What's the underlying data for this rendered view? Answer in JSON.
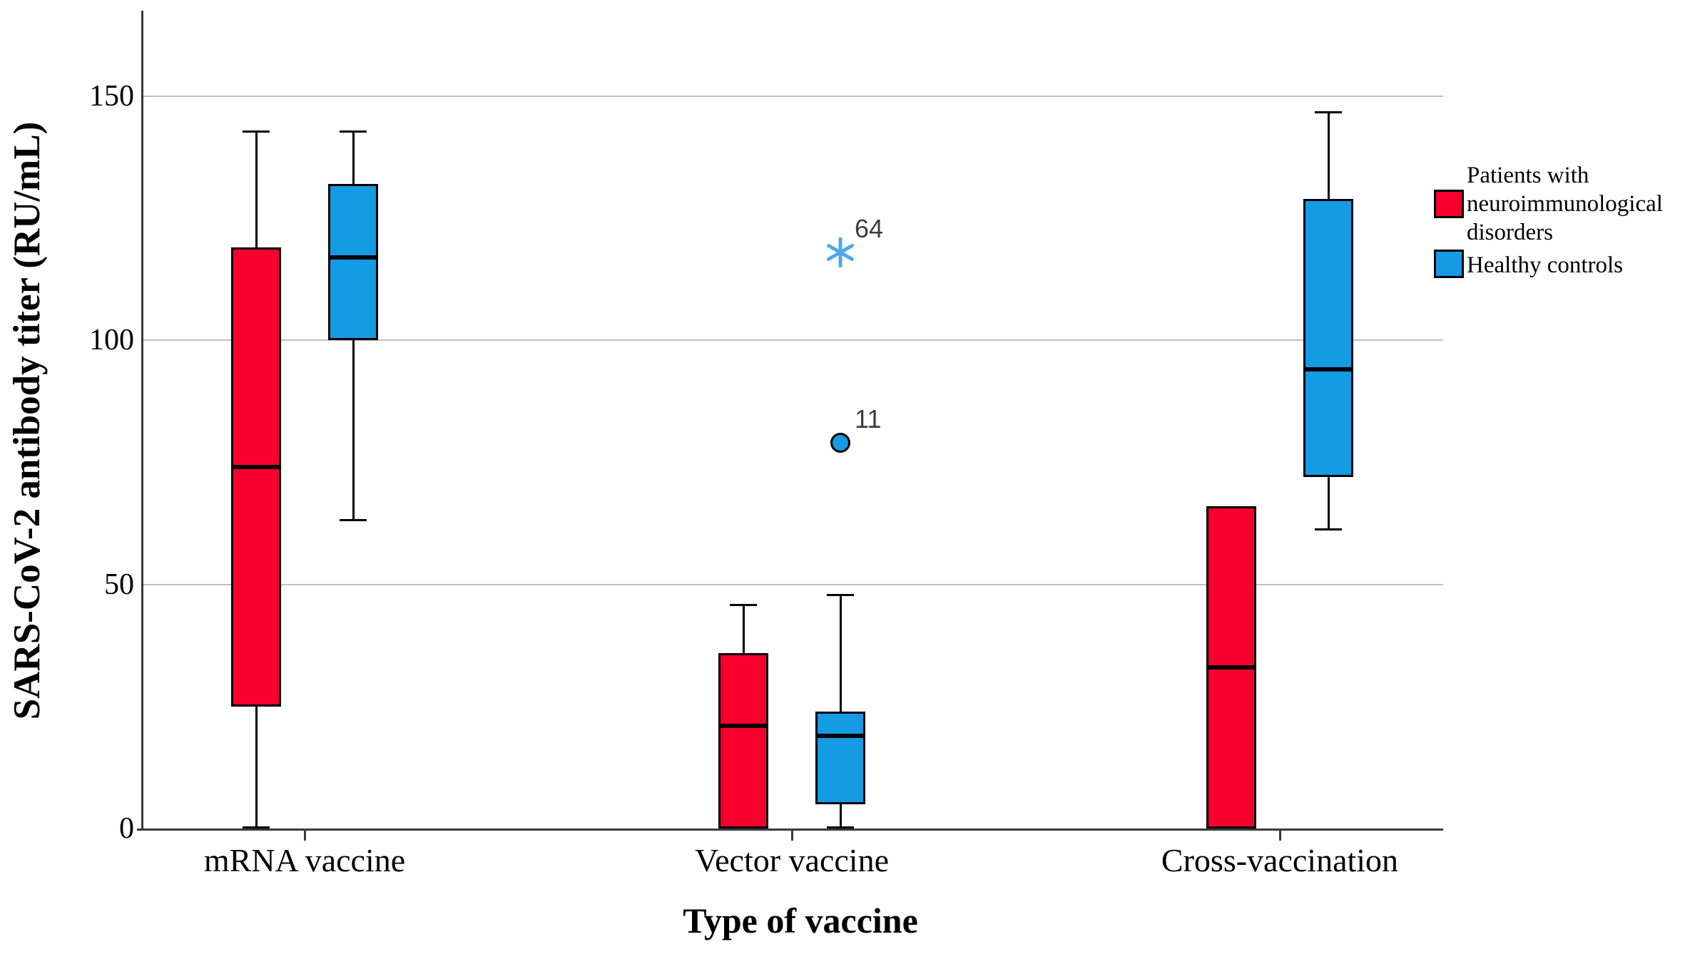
{
  "figure": {
    "background": "#ffffff"
  },
  "chart_data": {
    "type": "boxplot",
    "title": "",
    "xlabel": "Type of vaccine",
    "ylabel": "SARS-CoV-2 antibody titer (RU/mL)",
    "categories": [
      "mRNA vaccine",
      "Vector vaccine",
      "Cross-vaccination"
    ],
    "y_ticks": [
      0,
      50,
      100,
      150
    ],
    "ylim": [
      0,
      167
    ],
    "grid": "horizontal-gray-lines-at-50-100-150",
    "legend_position": "right",
    "series": [
      {
        "name": "Patients with neuroimmunological disorders",
        "color": "#f8002e",
        "boxes": [
          {
            "category": "mRNA vaccine",
            "whisker_low": 0,
            "q1": 25,
            "median": 74,
            "q3": 119,
            "whisker_high": 143,
            "outliers": []
          },
          {
            "category": "Vector vaccine",
            "whisker_low": 0,
            "q1": 0,
            "median": 21,
            "q3": 36,
            "whisker_high": 46,
            "outliers": []
          },
          {
            "category": "Cross-vaccination",
            "whisker_low": 0,
            "q1": 0,
            "median": 33,
            "q3": 66,
            "whisker_high": 66,
            "outliers": []
          }
        ]
      },
      {
        "name": "Healthy controls",
        "color": "#149be4",
        "boxes": [
          {
            "category": "mRNA vaccine",
            "whisker_low": 63,
            "q1": 100,
            "median": 117,
            "q3": 132,
            "whisker_high": 143,
            "outliers": []
          },
          {
            "category": "Vector vaccine",
            "whisker_low": 0,
            "q1": 5,
            "median": 19,
            "q3": 24,
            "whisker_high": 48,
            "outliers": [
              {
                "value": 79,
                "label": "11",
                "marker": "circle",
                "color": "#149be4"
              },
              {
                "value": 118,
                "label": "64",
                "marker": "asterisk",
                "color": "#4fa8ec"
              }
            ]
          },
          {
            "category": "Cross-vaccination",
            "whisker_low": 61,
            "q1": 72,
            "median": 94,
            "q3": 129,
            "whisker_high": 147,
            "outliers": []
          }
        ]
      }
    ]
  },
  "legend": {
    "items": [
      {
        "label": "Patients with neuroimmunological disorders",
        "label_lines": [
          "Patients with",
          "neuroimmunological",
          "disorders"
        ],
        "color": "#f8002e"
      },
      {
        "label": "Healthy controls",
        "label_lines": [
          "Healthy controls"
        ],
        "color": "#149be4"
      }
    ]
  },
  "colors": {
    "patients_red": "#f8002e",
    "controls_blue": "#149be4",
    "extreme_marker_blue": "#4fa8ec",
    "gridline_gray": "#bfbfbf",
    "axis_gray": "#3a3a3a",
    "box_outline": "#000000"
  }
}
